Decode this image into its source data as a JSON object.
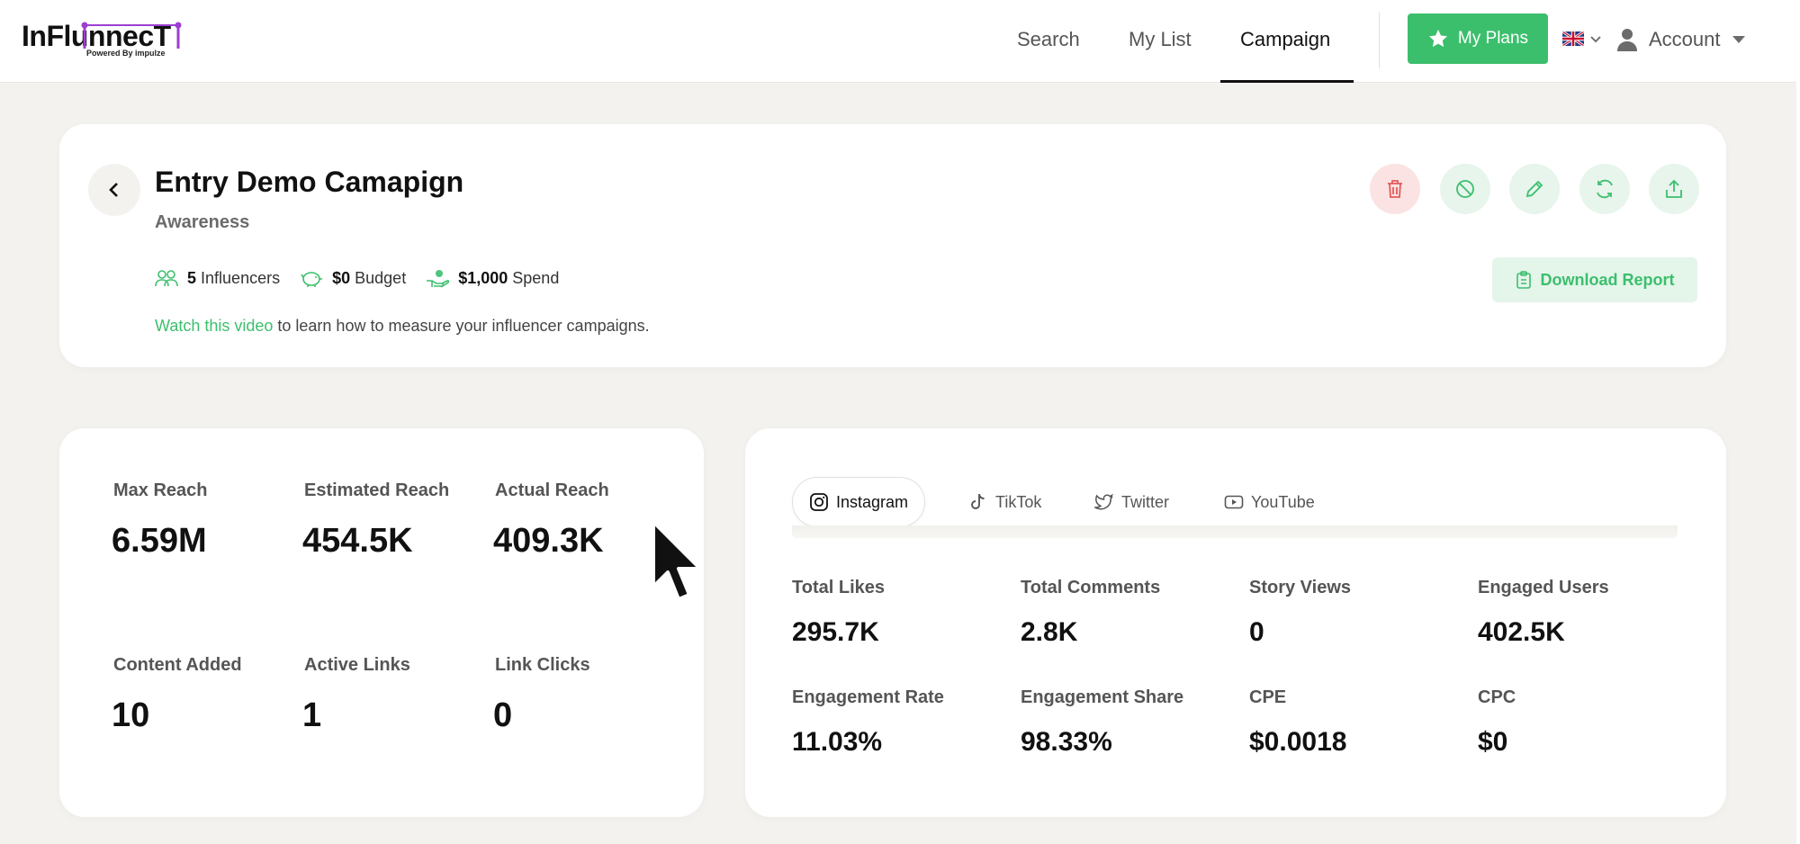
{
  "brand": {
    "logo_text": "InFlunnecT",
    "powered_by": "Powered By impulze",
    "accent_color": "#9b3fd1"
  },
  "nav": {
    "links": [
      "Search",
      "My List",
      "Campaign"
    ],
    "active": "Campaign",
    "plans_label": "My Plans",
    "account_label": "Account",
    "language_icon": "uk-flag-icon"
  },
  "colors": {
    "primary_green": "#3cbf6d",
    "danger_red": "#e45b5b",
    "page_bg": "#f3f2ee"
  },
  "campaign": {
    "title": "Entry Demo Camapign",
    "objective": "Awareness",
    "influencers_count": "5",
    "influencers_label": "Influencers",
    "budget_value": "$0",
    "budget_label": "Budget",
    "spend_value": "$1,000",
    "spend_label": "Spend",
    "watch_link": "Watch this video",
    "watch_rest": " to learn how to measure your influencer campaigns.",
    "download_label": "Download Report",
    "actions": [
      "delete-icon",
      "block-icon",
      "edit-icon",
      "refresh-icon",
      "share-icon"
    ]
  },
  "reach": {
    "max_reach_label": "Max Reach",
    "max_reach_value": "6.59M",
    "est_reach_label": "Estimated Reach",
    "est_reach_value": "454.5K",
    "actual_reach_label": "Actual Reach",
    "actual_reach_value": "409.3K",
    "content_label": "Content Added",
    "content_value": "10",
    "links_label": "Active Links",
    "links_value": "1",
    "clicks_label": "Link Clicks",
    "clicks_value": "0"
  },
  "social": {
    "tabs": [
      "Instagram",
      "TikTok",
      "Twitter",
      "YouTube"
    ],
    "active_tab": "Instagram",
    "metrics": [
      {
        "label": "Total Likes",
        "value": "295.7K"
      },
      {
        "label": "Total Comments",
        "value": "2.8K"
      },
      {
        "label": "Story Views",
        "value": "0"
      },
      {
        "label": "Engaged Users",
        "value": "402.5K"
      },
      {
        "label": "Engagement Rate",
        "value": "11.03%"
      },
      {
        "label": "Engagement Share",
        "value": "98.33%"
      },
      {
        "label": "CPE",
        "value": "$0.0018"
      },
      {
        "label": "CPC",
        "value": "$0"
      }
    ]
  }
}
